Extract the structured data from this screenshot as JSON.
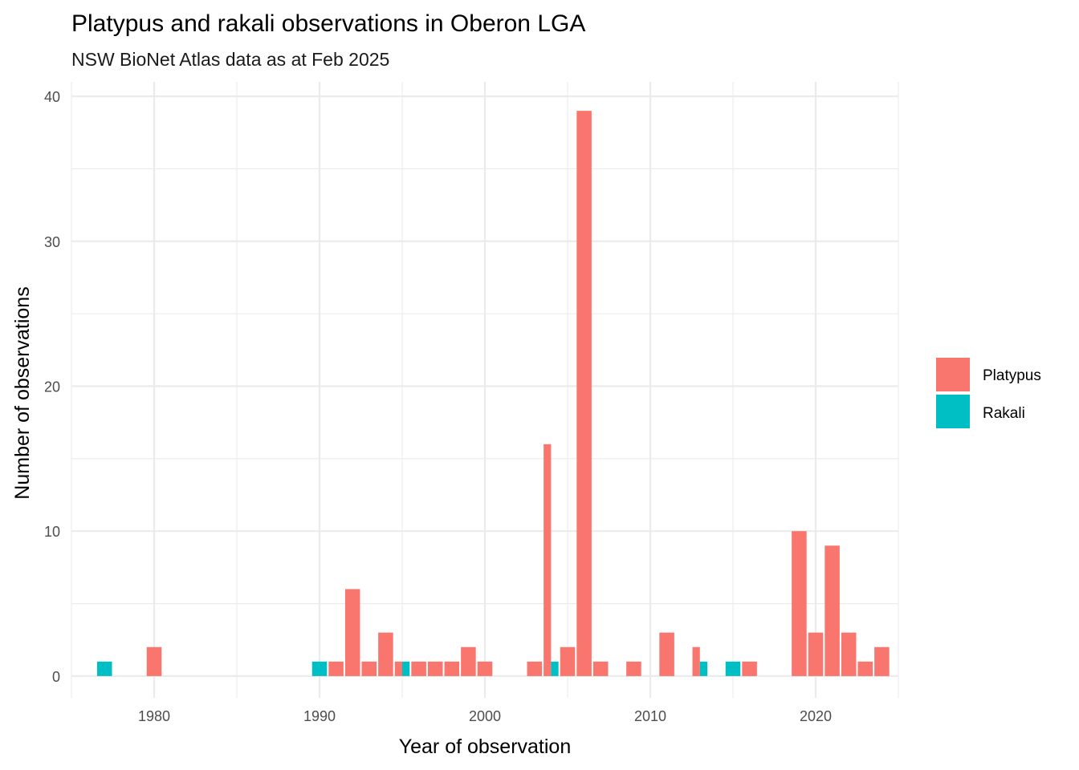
{
  "chart_data": {
    "type": "bar",
    "title": "Platypus and rakali observations in Oberon LGA",
    "subtitle": "NSW BioNet Atlas data as at Feb 2025",
    "xlabel": "Year of observation",
    "ylabel": "Number of observations",
    "xlim": [
      1975,
      2025
    ],
    "ylim": [
      -1.5,
      41
    ],
    "x_ticks": [
      1980,
      1990,
      2000,
      2010,
      2020
    ],
    "y_ticks": [
      0,
      10,
      20,
      30,
      40
    ],
    "grid": true,
    "legend_position": "right",
    "series": [
      {
        "name": "Platypus",
        "color": "#F8766D",
        "points": [
          {
            "x": 1980,
            "y": 2
          },
          {
            "x": 1991,
            "y": 1
          },
          {
            "x": 1992,
            "y": 6
          },
          {
            "x": 1993,
            "y": 1
          },
          {
            "x": 1994,
            "y": 3
          },
          {
            "x": 1995,
            "y": 1
          },
          {
            "x": 1996,
            "y": 1
          },
          {
            "x": 1997,
            "y": 1
          },
          {
            "x": 1998,
            "y": 1
          },
          {
            "x": 1999,
            "y": 2
          },
          {
            "x": 2000,
            "y": 1
          },
          {
            "x": 2003,
            "y": 1
          },
          {
            "x": 2004,
            "y": 16
          },
          {
            "x": 2005,
            "y": 2
          },
          {
            "x": 2006,
            "y": 39
          },
          {
            "x": 2007,
            "y": 1
          },
          {
            "x": 2009,
            "y": 1
          },
          {
            "x": 2011,
            "y": 3
          },
          {
            "x": 2013,
            "y": 2
          },
          {
            "x": 2016,
            "y": 1
          },
          {
            "x": 2019,
            "y": 10
          },
          {
            "x": 2020,
            "y": 3
          },
          {
            "x": 2021,
            "y": 9
          },
          {
            "x": 2022,
            "y": 3
          },
          {
            "x": 2023,
            "y": 1
          },
          {
            "x": 2024,
            "y": 2
          }
        ]
      },
      {
        "name": "Rakali",
        "color": "#00BFC4",
        "points": [
          {
            "x": 1977,
            "y": 1
          },
          {
            "x": 1990,
            "y": 1
          },
          {
            "x": 1995,
            "y": 1
          },
          {
            "x": 2004,
            "y": 1
          },
          {
            "x": 2013,
            "y": 1
          },
          {
            "x": 2015,
            "y": 1
          }
        ]
      }
    ]
  }
}
